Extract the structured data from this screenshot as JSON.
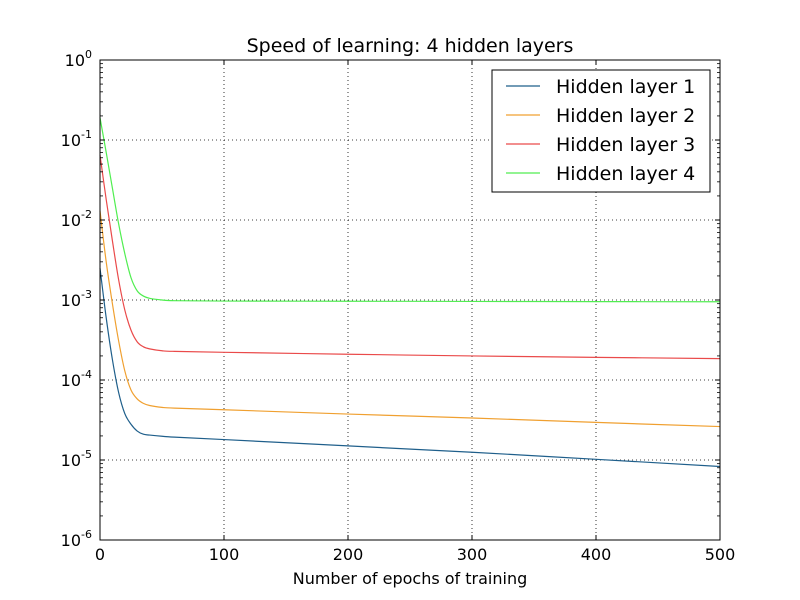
{
  "chart_data": {
    "type": "line",
    "title": "Speed of learning: 4 hidden layers",
    "xlabel": "Number of epochs of training",
    "ylabel": "",
    "xlim": [
      0,
      500
    ],
    "ylim": [
      1e-06,
      1
    ],
    "yscale": "log",
    "grid": true,
    "legend_position": "top-right",
    "xticks": [
      "0",
      "100",
      "200",
      "300",
      "400",
      "500"
    ],
    "yticks": [
      {
        "base": "10",
        "exp": "0"
      },
      {
        "base": "10",
        "exp": "-1"
      },
      {
        "base": "10",
        "exp": "-2"
      },
      {
        "base": "10",
        "exp": "-3"
      },
      {
        "base": "10",
        "exp": "-4"
      },
      {
        "base": "10",
        "exp": "-5"
      },
      {
        "base": "10",
        "exp": "-6"
      }
    ],
    "x": [
      0,
      5,
      10,
      15,
      20,
      25,
      30,
      35,
      40,
      50,
      60,
      100,
      200,
      300,
      400,
      500
    ],
    "series": [
      {
        "name": "Hidden layer 1",
        "color": "#1f5f8b",
        "values": [
          0.0025,
          0.0006,
          0.00018,
          7e-05,
          3.8e-05,
          2.8e-05,
          2.3e-05,
          2.1e-05,
          2.05e-05,
          1.98e-05,
          1.93e-05,
          1.8e-05,
          1.5e-05,
          1.25e-05,
          1.02e-05,
          8.3e-06
        ]
      },
      {
        "name": "Hidden layer 2",
        "color": "#f0a030",
        "values": [
          0.013,
          0.003,
          0.0009,
          0.00031,
          0.00013,
          7.5e-05,
          5.8e-05,
          5.1e-05,
          4.8e-05,
          4.55e-05,
          4.45e-05,
          4.25e-05,
          3.75e-05,
          3.35e-05,
          2.95e-05,
          2.62e-05
        ]
      },
      {
        "name": "Hidden layer 3",
        "color": "#ea4a4a",
        "values": [
          0.065,
          0.018,
          0.0055,
          0.0018,
          0.00075,
          0.00042,
          0.0003,
          0.00026,
          0.000245,
          0.000232,
          0.000228,
          0.000222,
          0.00021,
          0.0002,
          0.000192,
          0.000185
        ]
      },
      {
        "name": "Hidden layer 4",
        "color": "#50ee50",
        "values": [
          0.19,
          0.07,
          0.025,
          0.009,
          0.0038,
          0.0019,
          0.0013,
          0.00112,
          0.00105,
          0.001,
          0.00098,
          0.00097,
          0.000965,
          0.00096,
          0.000955,
          0.00095
        ]
      }
    ]
  }
}
